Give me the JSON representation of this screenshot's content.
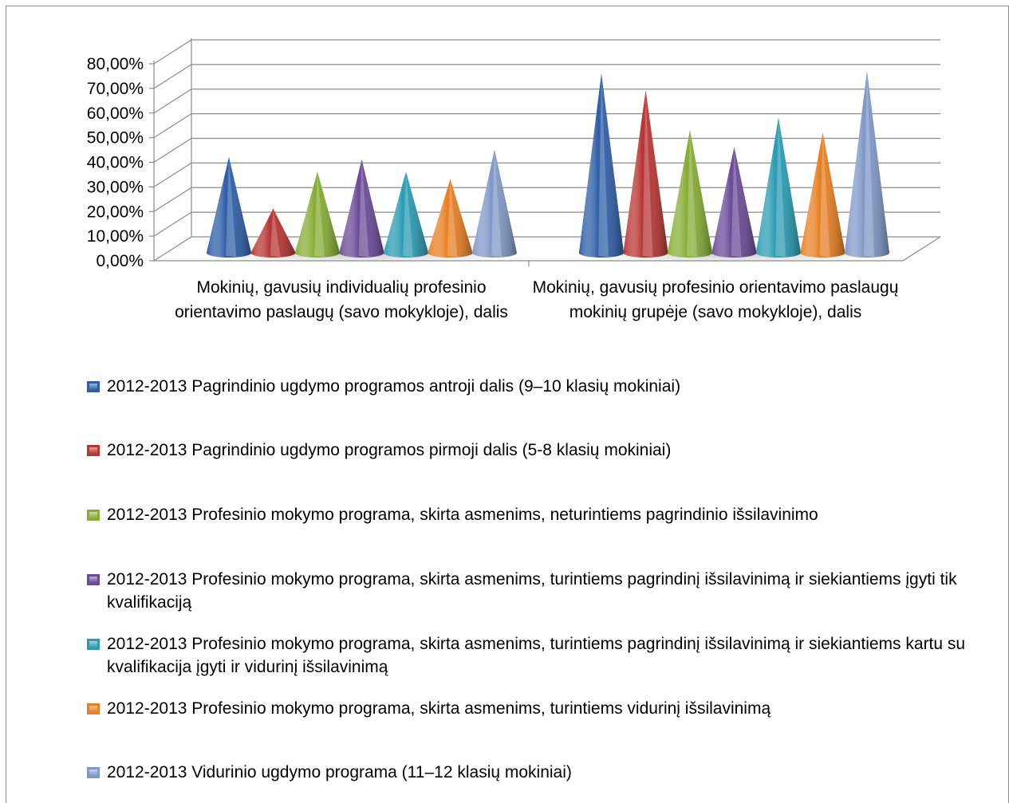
{
  "chart_data": {
    "type": "bar",
    "bar_shape": "cone-3d",
    "title": "",
    "xlabel": "",
    "ylabel": "",
    "ylim": [
      0,
      0.8
    ],
    "y_ticks": [
      "0,00%",
      "10,00%",
      "20,00%",
      "30,00%",
      "40,00%",
      "50,00%",
      "60,00%",
      "70,00%",
      "80,00%"
    ],
    "grid": true,
    "legend_position": "bottom",
    "categories": [
      "Mokinių, gavusių individualių profesinio orientavimo paslaugų (savo mokykloje), dalis",
      "Mokinių, gavusių profesinio orientavimo paslaugų mokinių grupėje (savo mokykloje), dalis"
    ],
    "series": [
      {
        "name": "2012-2013 Pagrindinio ugdymo programos antroji dalis (9–10 klasių mokiniai)",
        "color": "#2e5fa8",
        "values": [
          0.39,
          0.73
        ]
      },
      {
        "name": "2012-2013 Pagrindinio ugdymo programos pirmoji dalis (5-8 klasių mokiniai)",
        "color": "#b83532",
        "values": [
          0.18,
          0.66
        ]
      },
      {
        "name": "2012-2013 Profesinio mokymo programa, skirta asmenims, neturintiems pagrindinio išsilavinimo",
        "color": "#86ad34",
        "values": [
          0.33,
          0.5
        ]
      },
      {
        "name": "2012-2013 Profesinio mokymo programa, skirta asmenims, turintiems pagrindinį išsilavinimą ir siekiantiems įgyti tik kvalifikaciją",
        "color": "#6c4a98",
        "values": [
          0.38,
          0.43
        ]
      },
      {
        "name": "2012-2013 Profesinio mokymo programa, skirta asmenims, turintiems pagrindinį išsilavinimą ir siekiantiems kartu su kvalifikacija įgyti ir vidurinį išsilavinimą",
        "color": "#2a9cb4",
        "values": [
          0.33,
          0.55
        ]
      },
      {
        "name": "2012-2013 Profesinio mokymo programa, skirta asmenims, turintiems vidurinį išsilavinimą",
        "color": "#e87f22",
        "values": [
          0.3,
          0.49
        ]
      },
      {
        "name": "2012-2013 Vidurinio ugdymo programa (11–12 klasių mokiniai)",
        "color": "#8098c8",
        "values": [
          0.42,
          0.74
        ]
      }
    ]
  }
}
